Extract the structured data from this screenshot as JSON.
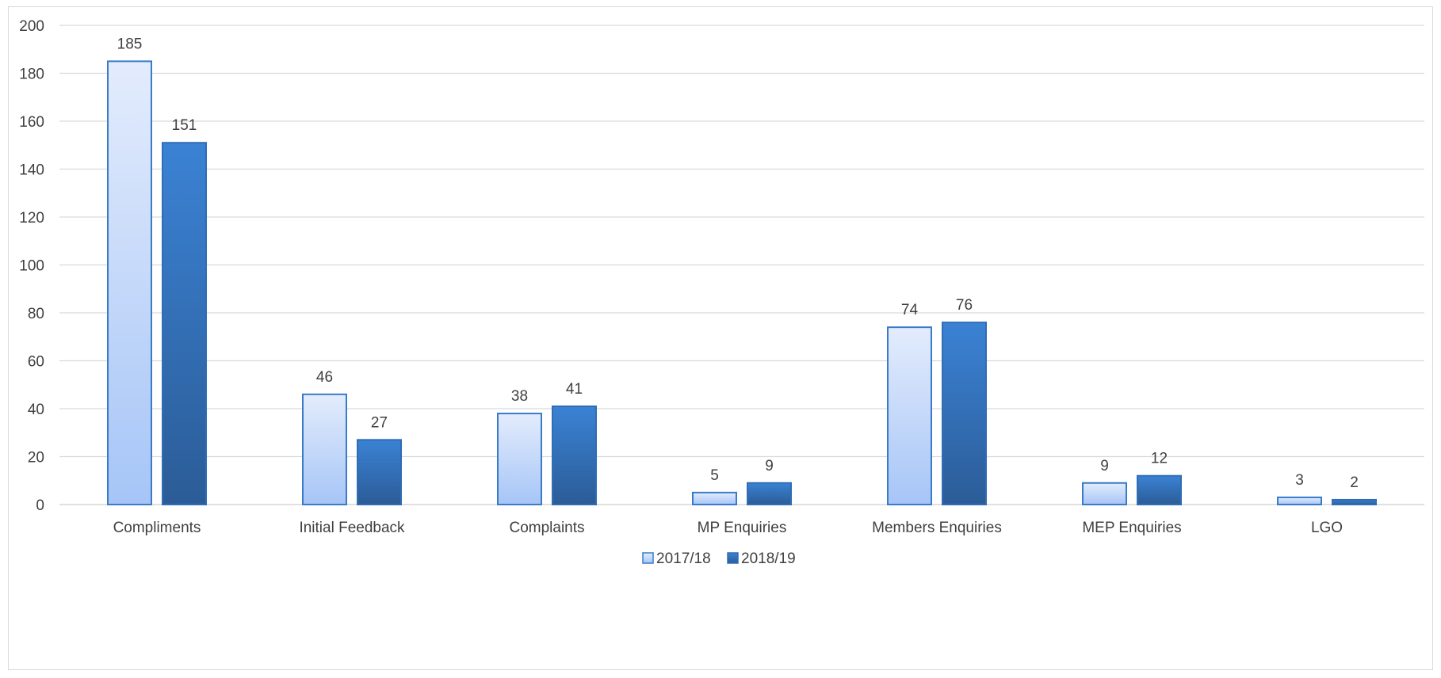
{
  "chart_data": {
    "type": "bar",
    "categories": [
      "Compliments",
      "Initial Feedback",
      "Complaints",
      "MP Enquiries",
      "Members Enquiries",
      "MEP Enquiries",
      "LGO"
    ],
    "series": [
      {
        "name": "2017/18",
        "values": [
          185,
          46,
          38,
          5,
          74,
          9,
          3
        ]
      },
      {
        "name": "2018/19",
        "values": [
          151,
          27,
          41,
          9,
          76,
          12,
          2
        ]
      }
    ],
    "ylim": [
      0,
      200
    ],
    "yticks": [
      0,
      20,
      40,
      60,
      80,
      100,
      120,
      140,
      160,
      180,
      200
    ],
    "title": "",
    "xlabel": "",
    "ylabel": "",
    "grid": true,
    "legend_position": "bottom",
    "colors": {
      "series_1_top": "#E3ECFC",
      "series_1_bottom": "#A6C5F7",
      "series_1_border": "#3A7BC8",
      "series_2_top": "#3B82D4",
      "series_2_bottom": "#2B5C97",
      "series_2_border": "#2F6DB5",
      "grid": "#d9d9d9",
      "text": "#404040"
    }
  }
}
